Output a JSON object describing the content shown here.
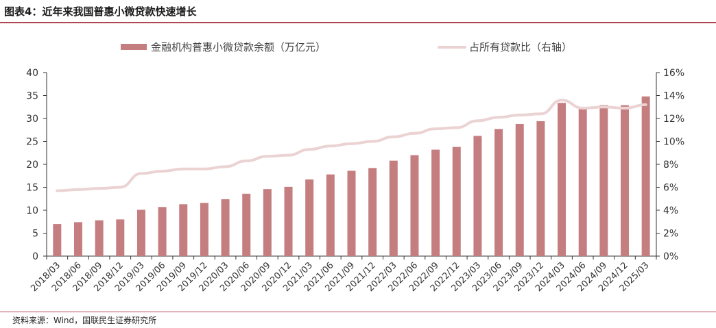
{
  "title": "图表4：近年来我国普惠小微贷款快速增长",
  "source": "资料来源：Wind，国联民生证券研究所",
  "colors": {
    "bar": "#c57e80",
    "line": "#ebd2d3",
    "rule": "#b0474f",
    "axis": "#333333"
  },
  "chart_data": {
    "type": "bar+line",
    "title": "",
    "categories": [
      "2018/03",
      "2018/06",
      "2018/09",
      "2018/12",
      "2019/03",
      "2019/06",
      "2019/09",
      "2019/12",
      "2020/03",
      "2020/06",
      "2020/09",
      "2020/12",
      "2021/03",
      "2021/06",
      "2021/09",
      "2021/12",
      "2022/03",
      "2022/06",
      "2022/09",
      "2022/12",
      "2023/03",
      "2023/06",
      "2023/09",
      "2023/12",
      "2024/03",
      "2024/06",
      "2024/09",
      "2024/12",
      "2025/03"
    ],
    "series": [
      {
        "name": "金融机构普惠小微贷款余额（万亿元）",
        "type": "bar",
        "axis": "left",
        "values": [
          7.0,
          7.4,
          7.8,
          8.0,
          10.1,
          10.7,
          11.3,
          11.6,
          12.4,
          13.6,
          14.6,
          15.1,
          16.7,
          17.8,
          18.6,
          19.2,
          20.8,
          22.0,
          23.2,
          23.8,
          26.2,
          27.7,
          28.8,
          29.4,
          33.4,
          32.4,
          32.9,
          32.9,
          34.8
        ]
      },
      {
        "name": "占所有贷款比（右轴）",
        "type": "line",
        "axis": "right",
        "values": [
          5.7,
          5.8,
          5.9,
          6.0,
          7.2,
          7.4,
          7.6,
          7.6,
          7.8,
          8.3,
          8.7,
          8.8,
          9.3,
          9.6,
          9.8,
          10.0,
          10.4,
          10.7,
          11.1,
          11.2,
          11.8,
          12.1,
          12.3,
          12.4,
          13.6,
          12.9,
          13.0,
          12.9,
          13.2
        ]
      }
    ],
    "y_left": {
      "min": 0,
      "max": 40,
      "ticks": [
        0,
        5,
        10,
        15,
        20,
        25,
        30,
        35,
        40
      ]
    },
    "y_right": {
      "min": 0,
      "max": 16,
      "ticks": [
        "0%",
        "2%",
        "4%",
        "6%",
        "8%",
        "10%",
        "12%",
        "14%",
        "16%"
      ]
    },
    "legend_placement": "top-center",
    "grid": false
  }
}
